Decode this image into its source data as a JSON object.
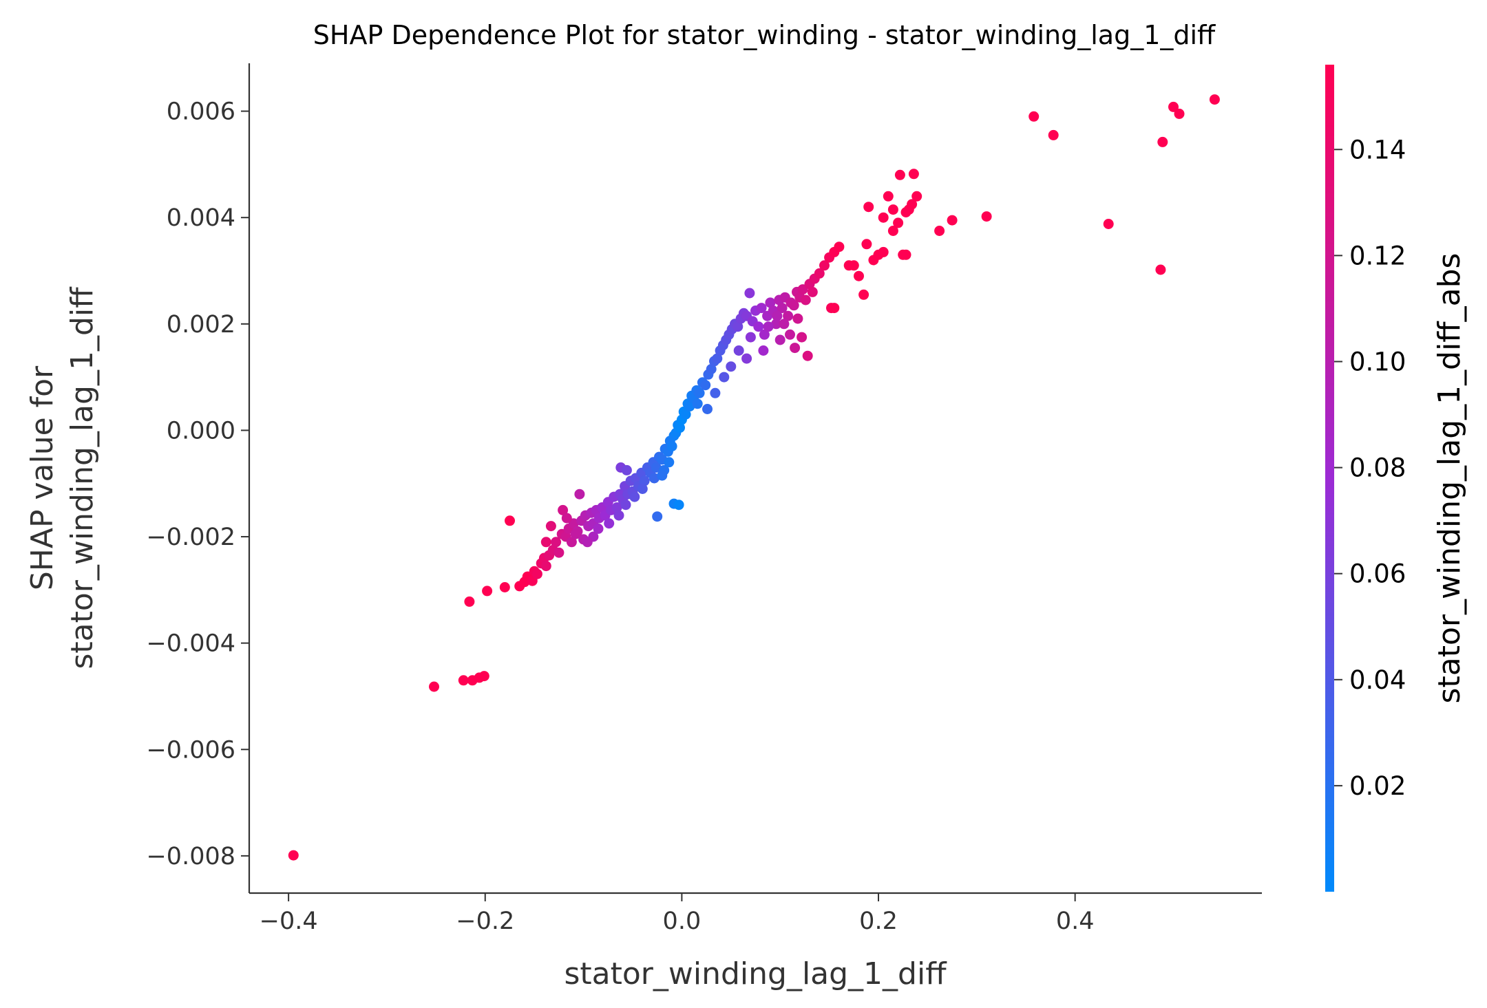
{
  "chart_data": {
    "type": "scatter",
    "title": "SHAP Dependence Plot for stator_winding - stator_winding_lag_1_diff",
    "xlabel": "stator_winding_lag_1_diff",
    "ylabel_line1": "SHAP value for",
    "ylabel_line2": "stator_winding_lag_1_diff",
    "xlim": [
      -0.44,
      0.59
    ],
    "ylim": [
      -0.0087,
      0.0069
    ],
    "x_ticks": [
      {
        "value": -0.4,
        "label": "−0.4"
      },
      {
        "value": -0.2,
        "label": "−0.2"
      },
      {
        "value": 0.0,
        "label": "0.0"
      },
      {
        "value": 0.2,
        "label": "0.2"
      },
      {
        "value": 0.4,
        "label": "0.4"
      }
    ],
    "y_ticks": [
      {
        "value": 0.006,
        "label": "0.006"
      },
      {
        "value": 0.004,
        "label": "0.004"
      },
      {
        "value": 0.002,
        "label": "0.002"
      },
      {
        "value": 0.0,
        "label": "0.000"
      },
      {
        "value": -0.002,
        "label": "−0.002"
      },
      {
        "value": -0.004,
        "label": "−0.004"
      },
      {
        "value": -0.006,
        "label": "−0.006"
      },
      {
        "value": -0.008,
        "label": "−0.008"
      }
    ],
    "colorbar": {
      "label": "stator_winding_lag_1_diff_abs",
      "range": [
        0.0,
        0.156
      ],
      "ticks": [
        {
          "value": 0.02,
          "label": "0.02"
        },
        {
          "value": 0.04,
          "label": "0.04"
        },
        {
          "value": 0.06,
          "label": "0.06"
        },
        {
          "value": 0.08,
          "label": "0.08"
        },
        {
          "value": 0.1,
          "label": "0.10"
        },
        {
          "value": 0.12,
          "label": "0.12"
        },
        {
          "value": 0.14,
          "label": "0.14"
        }
      ],
      "colormap": [
        "#008afb",
        "#9c2bd4",
        "#ff0052"
      ]
    },
    "points": [
      [
        -0.395,
        -0.00799
      ],
      [
        -0.252,
        -0.00482
      ],
      [
        -0.222,
        -0.0047
      ],
      [
        -0.213,
        -0.0047
      ],
      [
        -0.206,
        -0.00465
      ],
      [
        -0.201,
        -0.00462
      ],
      [
        -0.216,
        -0.00322
      ],
      [
        -0.198,
        -0.00302
      ],
      [
        -0.18,
        -0.00295
      ],
      [
        -0.175,
        -0.0017
      ],
      [
        -0.165,
        -0.00293
      ],
      [
        -0.16,
        -0.00285
      ],
      [
        -0.157,
        -0.00275
      ],
      [
        -0.152,
        -0.00283
      ],
      [
        -0.15,
        -0.00265
      ],
      [
        -0.147,
        -0.0027
      ],
      [
        -0.143,
        -0.0025
      ],
      [
        -0.14,
        -0.0024
      ],
      [
        -0.138,
        -0.00255
      ],
      [
        -0.135,
        -0.00235
      ],
      [
        -0.138,
        -0.0021
      ],
      [
        -0.131,
        -0.00225
      ],
      [
        -0.128,
        -0.0021
      ],
      [
        -0.125,
        -0.0023
      ],
      [
        -0.122,
        -0.00195
      ],
      [
        -0.118,
        -0.002
      ],
      [
        -0.115,
        -0.00185
      ],
      [
        -0.112,
        -0.0021
      ],
      [
        -0.11,
        -0.00175
      ],
      [
        -0.106,
        -0.0019
      ],
      [
        -0.102,
        -0.0017
      ],
      [
        -0.1,
        -0.00205
      ],
      [
        -0.098,
        -0.0016
      ],
      [
        -0.095,
        -0.0018
      ],
      [
        -0.092,
        -0.00155
      ],
      [
        -0.09,
        -0.00175
      ],
      [
        -0.087,
        -0.0015
      ],
      [
        -0.084,
        -0.00165
      ],
      [
        -0.081,
        -0.00145
      ],
      [
        -0.078,
        -0.0016
      ],
      [
        -0.075,
        -0.00135
      ],
      [
        -0.072,
        -0.0015
      ],
      [
        -0.069,
        -0.00125
      ],
      [
        -0.066,
        -0.00145
      ],
      [
        -0.063,
        -0.0012
      ],
      [
        -0.06,
        -0.0013
      ],
      [
        -0.058,
        -0.00105
      ],
      [
        -0.055,
        -0.0012
      ],
      [
        -0.052,
        -0.00095
      ],
      [
        -0.05,
        -0.00115
      ],
      [
        -0.062,
        -0.0007
      ],
      [
        -0.056,
        -0.00075
      ],
      [
        -0.104,
        -0.0012
      ],
      [
        -0.121,
        -0.0015
      ],
      [
        -0.133,
        -0.0018
      ],
      [
        -0.09,
        -0.002
      ],
      [
        -0.047,
        -0.0009
      ],
      [
        -0.044,
        -0.00105
      ],
      [
        -0.041,
        -0.0008
      ],
      [
        -0.038,
        -0.00095
      ],
      [
        -0.035,
        -0.0007
      ],
      [
        -0.032,
        -0.0008
      ],
      [
        -0.029,
        -0.0006
      ],
      [
        -0.026,
        -0.0007
      ],
      [
        -0.023,
        -0.0005
      ],
      [
        -0.02,
        -0.00055
      ],
      [
        -0.017,
        -0.00035
      ],
      [
        -0.014,
        -0.0004
      ],
      [
        -0.012,
        -0.0002
      ],
      [
        -0.01,
        -0.0003
      ],
      [
        -0.008,
        -0.0001
      ],
      [
        -0.006,
        -5e-05
      ],
      [
        -0.004,
        0.0001
      ],
      [
        -0.002,
        5e-05
      ],
      [
        0.0,
        0.0002
      ],
      [
        0.002,
        0.00035
      ],
      [
        0.004,
        0.0003
      ],
      [
        0.006,
        0.0005
      ],
      [
        0.008,
        0.00045
      ],
      [
        0.01,
        0.00065
      ],
      [
        0.012,
        0.0006
      ],
      [
        0.015,
        0.00075
      ],
      [
        0.018,
        0.0007
      ],
      [
        0.021,
        0.0009
      ],
      [
        -0.025,
        -0.00162
      ],
      [
        -0.008,
        -0.00138
      ],
      [
        -0.003,
        -0.0014
      ],
      [
        -0.018,
        -0.00075
      ],
      [
        0.024,
        0.00085
      ],
      [
        0.027,
        0.00105
      ],
      [
        0.03,
        0.00115
      ],
      [
        0.033,
        0.0013
      ],
      [
        0.036,
        0.00135
      ],
      [
        0.039,
        0.0015
      ],
      [
        0.042,
        0.0016
      ],
      [
        0.045,
        0.0017
      ],
      [
        0.048,
        0.0018
      ],
      [
        0.051,
        0.0019
      ],
      [
        0.054,
        0.002
      ],
      [
        0.057,
        0.00195
      ],
      [
        0.06,
        0.0021
      ],
      [
        0.063,
        0.0022
      ],
      [
        0.066,
        0.00215
      ],
      [
        0.069,
        0.00258
      ],
      [
        0.072,
        0.00205
      ],
      [
        0.075,
        0.00225
      ],
      [
        0.078,
        0.00195
      ],
      [
        0.081,
        0.0023
      ],
      [
        0.084,
        0.0018
      ],
      [
        0.087,
        0.00215
      ],
      [
        0.09,
        0.0024
      ],
      [
        0.093,
        0.00225
      ],
      [
        0.096,
        0.002
      ],
      [
        0.099,
        0.00245
      ],
      [
        0.102,
        0.0023
      ],
      [
        0.105,
        0.0025
      ],
      [
        0.108,
        0.00215
      ],
      [
        0.111,
        0.0024
      ],
      [
        0.114,
        0.00235
      ],
      [
        0.117,
        0.0026
      ],
      [
        0.12,
        0.0025
      ],
      [
        0.123,
        0.00265
      ],
      [
        0.126,
        0.00245
      ],
      [
        0.13,
        0.00275
      ],
      [
        0.135,
        0.00285
      ],
      [
        0.14,
        0.00295
      ],
      [
        0.145,
        0.0031
      ],
      [
        0.15,
        0.00325
      ],
      [
        0.155,
        0.00335
      ],
      [
        0.16,
        0.00345
      ],
      [
        0.066,
        0.00135
      ],
      [
        0.083,
        0.0015
      ],
      [
        0.1,
        0.0017
      ],
      [
        0.11,
        0.0018
      ],
      [
        0.122,
        0.00175
      ],
      [
        0.128,
        0.0014
      ],
      [
        0.115,
        0.00155
      ],
      [
        0.152,
        0.0023
      ],
      [
        0.155,
        0.0023
      ],
      [
        0.17,
        0.0031
      ],
      [
        0.175,
        0.0031
      ],
      [
        0.18,
        0.0029
      ],
      [
        0.185,
        0.00255
      ],
      [
        0.188,
        0.0035
      ],
      [
        0.19,
        0.0042
      ],
      [
        0.195,
        0.0032
      ],
      [
        0.2,
        0.0033
      ],
      [
        0.205,
        0.004
      ],
      [
        0.21,
        0.0044
      ],
      [
        0.215,
        0.00415
      ],
      [
        0.22,
        0.0039
      ],
      [
        0.222,
        0.0048
      ],
      [
        0.225,
        0.0033
      ],
      [
        0.228,
        0.0041
      ],
      [
        0.231,
        0.00415
      ],
      [
        0.234,
        0.00425
      ],
      [
        0.236,
        0.00482
      ],
      [
        0.239,
        0.0044
      ],
      [
        0.215,
        0.00375
      ],
      [
        0.205,
        0.00335
      ],
      [
        0.228,
        0.0033
      ],
      [
        0.262,
        0.00375
      ],
      [
        0.275,
        0.00395
      ],
      [
        0.31,
        0.00402
      ],
      [
        0.358,
        0.0059
      ],
      [
        0.378,
        0.00555
      ],
      [
        0.434,
        0.00388
      ],
      [
        0.487,
        0.00302
      ],
      [
        0.489,
        0.00542
      ],
      [
        0.5,
        0.00608
      ],
      [
        0.506,
        0.00595
      ],
      [
        0.542,
        0.00622
      ],
      [
        -0.117,
        -0.00165
      ],
      [
        -0.108,
        -0.00195
      ],
      [
        -0.096,
        -0.0021
      ],
      [
        -0.085,
        -0.00185
      ],
      [
        -0.074,
        -0.00175
      ],
      [
        -0.064,
        -0.0016
      ],
      [
        -0.057,
        -0.0014
      ],
      [
        -0.048,
        -0.00125
      ],
      [
        -0.04,
        -0.0011
      ],
      [
        -0.028,
        -0.0009
      ],
      [
        -0.02,
        -0.00085
      ],
      [
        -0.013,
        -0.0006
      ],
      [
        0.016,
        0.0005
      ],
      [
        0.026,
        0.0004
      ],
      [
        0.034,
        0.0007
      ],
      [
        0.043,
        0.001
      ],
      [
        0.05,
        0.0012
      ],
      [
        0.058,
        0.0015
      ],
      [
        0.07,
        0.00175
      ],
      [
        0.088,
        0.00195
      ],
      [
        0.097,
        0.00215
      ],
      [
        0.104,
        0.002
      ],
      [
        0.118,
        0.0021
      ],
      [
        0.133,
        0.0026
      ]
    ]
  }
}
